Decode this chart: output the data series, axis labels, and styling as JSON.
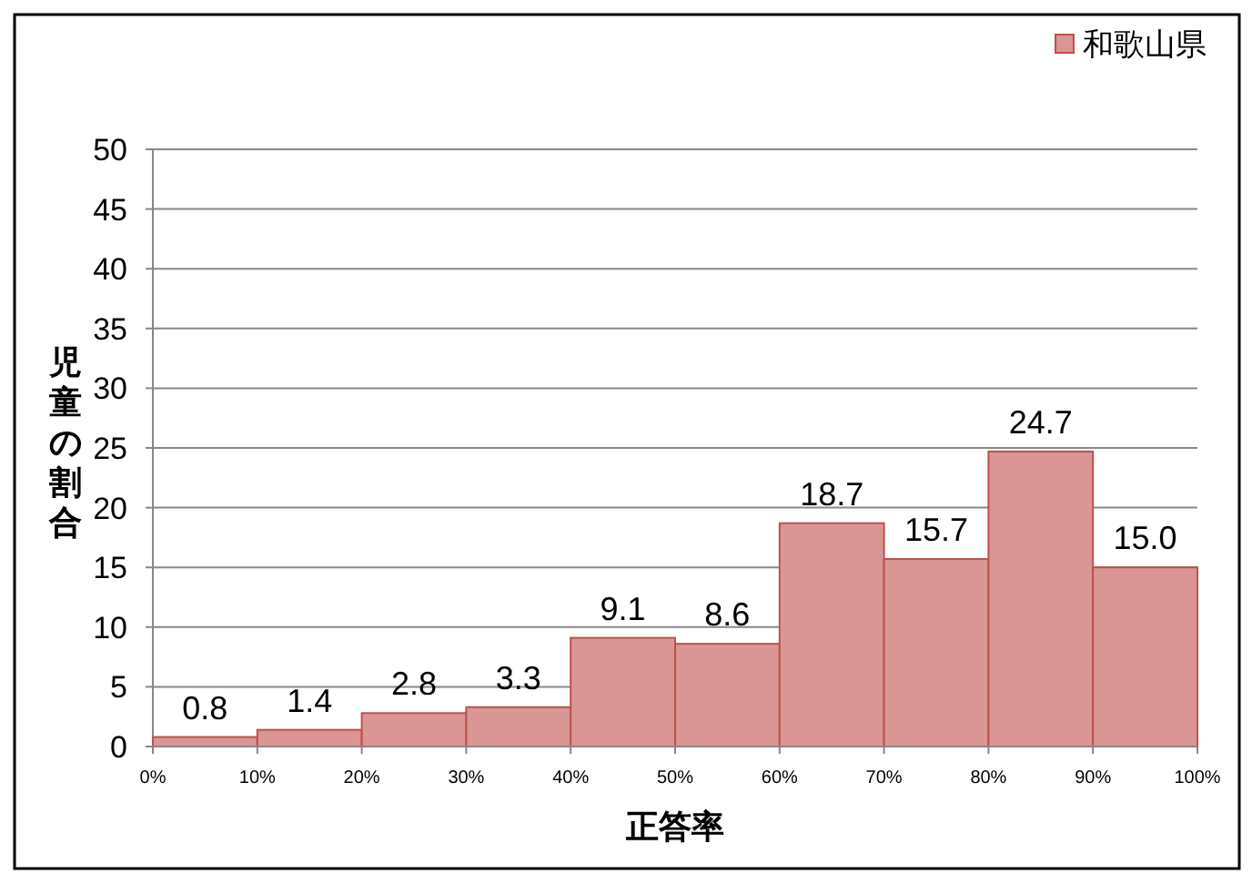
{
  "chart_data": {
    "type": "histogram",
    "xlabel": "正答率",
    "ylabel": "児童の割合",
    "bins": [
      0,
      10,
      20,
      30,
      40,
      50,
      60,
      70,
      80,
      90,
      100
    ],
    "series": [
      {
        "name": "和歌山県",
        "color": "#d99694",
        "values": [
          0.8,
          1.4,
          2.8,
          3.3,
          9.1,
          8.6,
          18.7,
          15.7,
          24.7,
          15.0
        ],
        "value_labels": [
          "0.8",
          "1.4",
          "2.8",
          "3.3",
          "9.1",
          "8.6",
          "18.7",
          "15.7",
          "24.7",
          "15.0"
        ]
      }
    ],
    "xlim": [
      0,
      100
    ],
    "xticks": [
      {
        "value": 0,
        "label": "0%"
      },
      {
        "value": 10,
        "label": "10%"
      },
      {
        "value": 20,
        "label": "20%"
      },
      {
        "value": 30,
        "label": "30%"
      },
      {
        "value": 40,
        "label": "40%"
      },
      {
        "value": 50,
        "label": "50%"
      },
      {
        "value": 60,
        "label": "60%"
      },
      {
        "value": 70,
        "label": "70%"
      },
      {
        "value": 80,
        "label": "80%"
      },
      {
        "value": 90,
        "label": "90%"
      },
      {
        "value": 100,
        "label": "100%"
      }
    ],
    "ylim": [
      0,
      50
    ],
    "yticks": [
      0,
      5,
      10,
      15,
      20,
      25,
      30,
      35,
      40,
      45,
      50
    ],
    "grid": "y",
    "legend": "top right"
  }
}
